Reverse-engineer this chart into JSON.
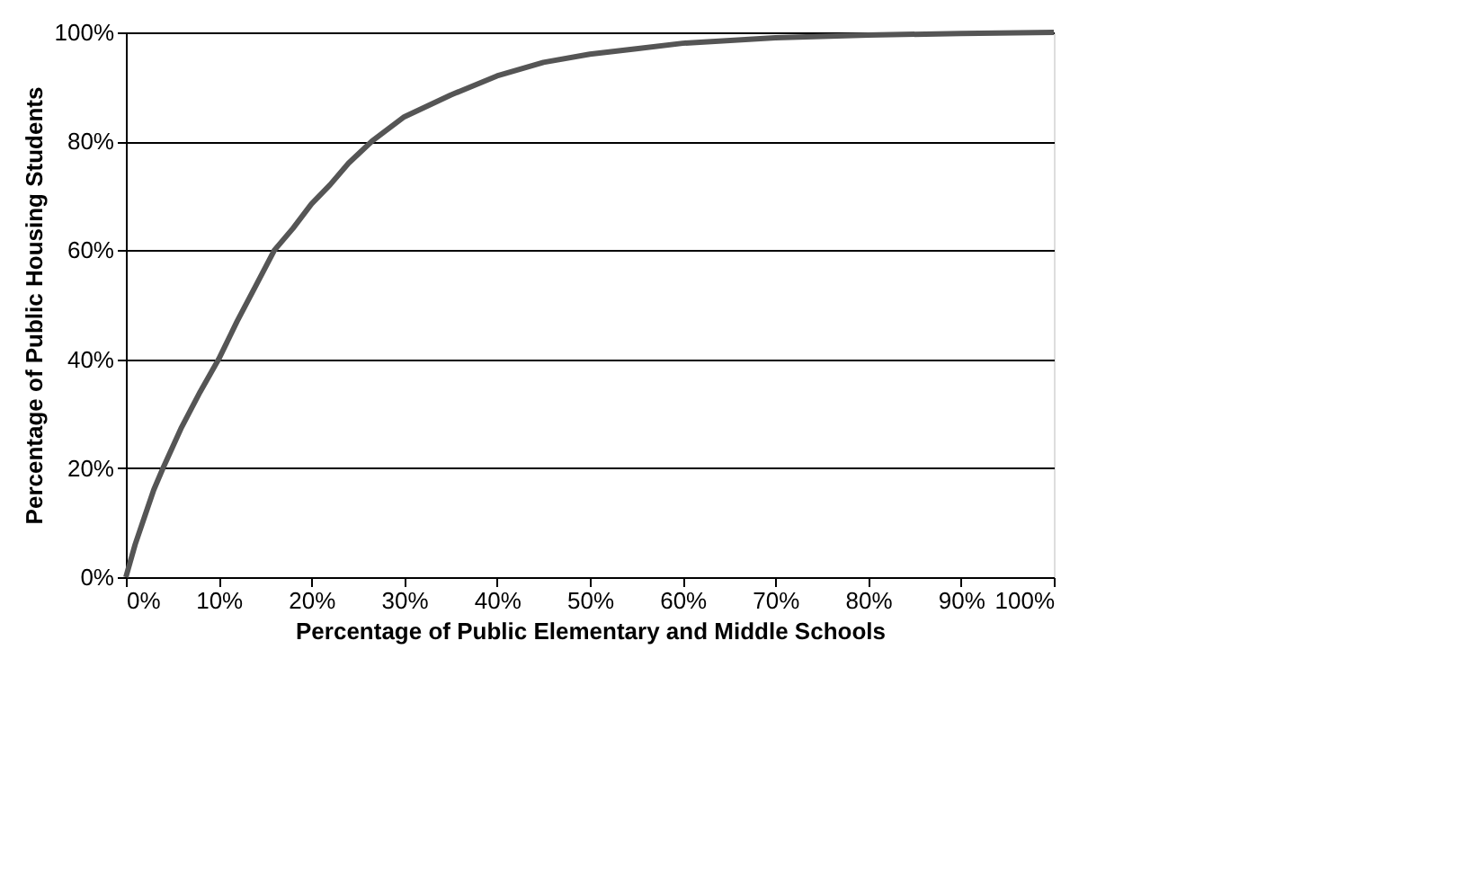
{
  "chart_data": {
    "type": "line",
    "xlabel": "Percentage of Public Elementary and Middle Schools",
    "ylabel": "Percentage of Public Housing Students",
    "x": [
      0,
      1,
      2,
      3,
      4,
      6,
      8,
      10,
      12,
      14,
      16,
      18,
      20,
      22,
      24,
      26.5,
      30,
      35,
      40,
      45,
      50,
      55,
      60,
      70,
      80,
      90,
      100
    ],
    "series": [
      {
        "color": "#555555",
        "values": [
          0,
          6,
          11,
          16,
          20,
          27.5,
          34,
          40,
          47,
          53.5,
          60,
          64,
          68.5,
          72,
          76,
          80,
          84.5,
          88.5,
          92,
          94.5,
          96,
          97,
          98,
          99,
          99.5,
          99.8,
          100
        ]
      }
    ],
    "xlim": [
      0,
      100
    ],
    "ylim": [
      0,
      100
    ],
    "xticks": [
      {
        "value": 0,
        "label": "0%"
      },
      {
        "value": 10,
        "label": "10%"
      },
      {
        "value": 20,
        "label": "20%"
      },
      {
        "value": 30,
        "label": "30%"
      },
      {
        "value": 40,
        "label": "40%"
      },
      {
        "value": 50,
        "label": "50%"
      },
      {
        "value": 60,
        "label": "60%"
      },
      {
        "value": 70,
        "label": "70%"
      },
      {
        "value": 80,
        "label": "80%"
      },
      {
        "value": 90,
        "label": "90%"
      },
      {
        "value": 100,
        "label": "100%"
      }
    ],
    "yticks": [
      {
        "value": 0,
        "label": "0%"
      },
      {
        "value": 20,
        "label": "20%"
      },
      {
        "value": 40,
        "label": "40%"
      },
      {
        "value": 60,
        "label": "60%"
      },
      {
        "value": 80,
        "label": "80%"
      },
      {
        "value": 100,
        "label": "100%"
      }
    ],
    "grid": "y",
    "legend": false,
    "marker": "none",
    "line_style": "solid"
  }
}
